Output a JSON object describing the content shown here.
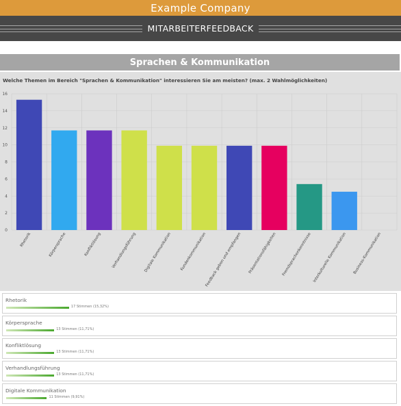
{
  "header": {
    "company": "Example Company",
    "survey_title": "MITARBEITERFEEDBACK"
  },
  "section": {
    "title": "Sprachen & Kommunikation",
    "question": "Welche Themen im Bereich \"Sprachen & Kommunikation\" interessieren Sie am meisten? (max. 2 Wahlmöglichkeiten)"
  },
  "chart_data": {
    "type": "bar",
    "title": "",
    "xlabel": "",
    "ylabel": "",
    "categories": [
      "Rhetorik",
      "Körpersprache",
      "Konfliktlösung",
      "Verhandlungsführung",
      "Digitale Kommunikation",
      "Kundenkommunikation",
      "Feedback geben und empfangen",
      "Präsentationsfähigkeiten",
      "Fremdsprachenkenntnisse",
      "Interkulturelle Kommunikation",
      "Business-Kommunikation"
    ],
    "values": [
      15.3,
      11.7,
      11.7,
      11.7,
      9.9,
      9.9,
      9.9,
      9.9,
      5.4,
      4.5,
      0
    ],
    "colors": [
      "#3f48b5",
      "#31a9ef",
      "#6c32bd",
      "#cfe04a",
      "#cfe04a",
      "#cfe04a",
      "#3f48b5",
      "#e6005f",
      "#259885",
      "#3b97ef",
      "#999999"
    ],
    "ylim": [
      0,
      16
    ],
    "yticks": [
      0,
      2,
      4,
      6,
      8,
      10,
      12,
      14,
      16
    ],
    "grid": true
  },
  "results": [
    {
      "label": "Rhetorik",
      "votes": "17 Stimmen (15,32%)",
      "fraction": 0.1532
    },
    {
      "label": "Körpersprache",
      "votes": "13 Stimmen (11,71%)",
      "fraction": 0.1171
    },
    {
      "label": "Konfliktlösung",
      "votes": "13 Stimmen (11,71%)",
      "fraction": 0.1171
    },
    {
      "label": "Verhandlungsführung",
      "votes": "13 Stimmen (11,71%)",
      "fraction": 0.1171
    },
    {
      "label": "Digitale Kommunikation",
      "votes": "11 Stimmen (9,91%)",
      "fraction": 0.0991
    }
  ]
}
